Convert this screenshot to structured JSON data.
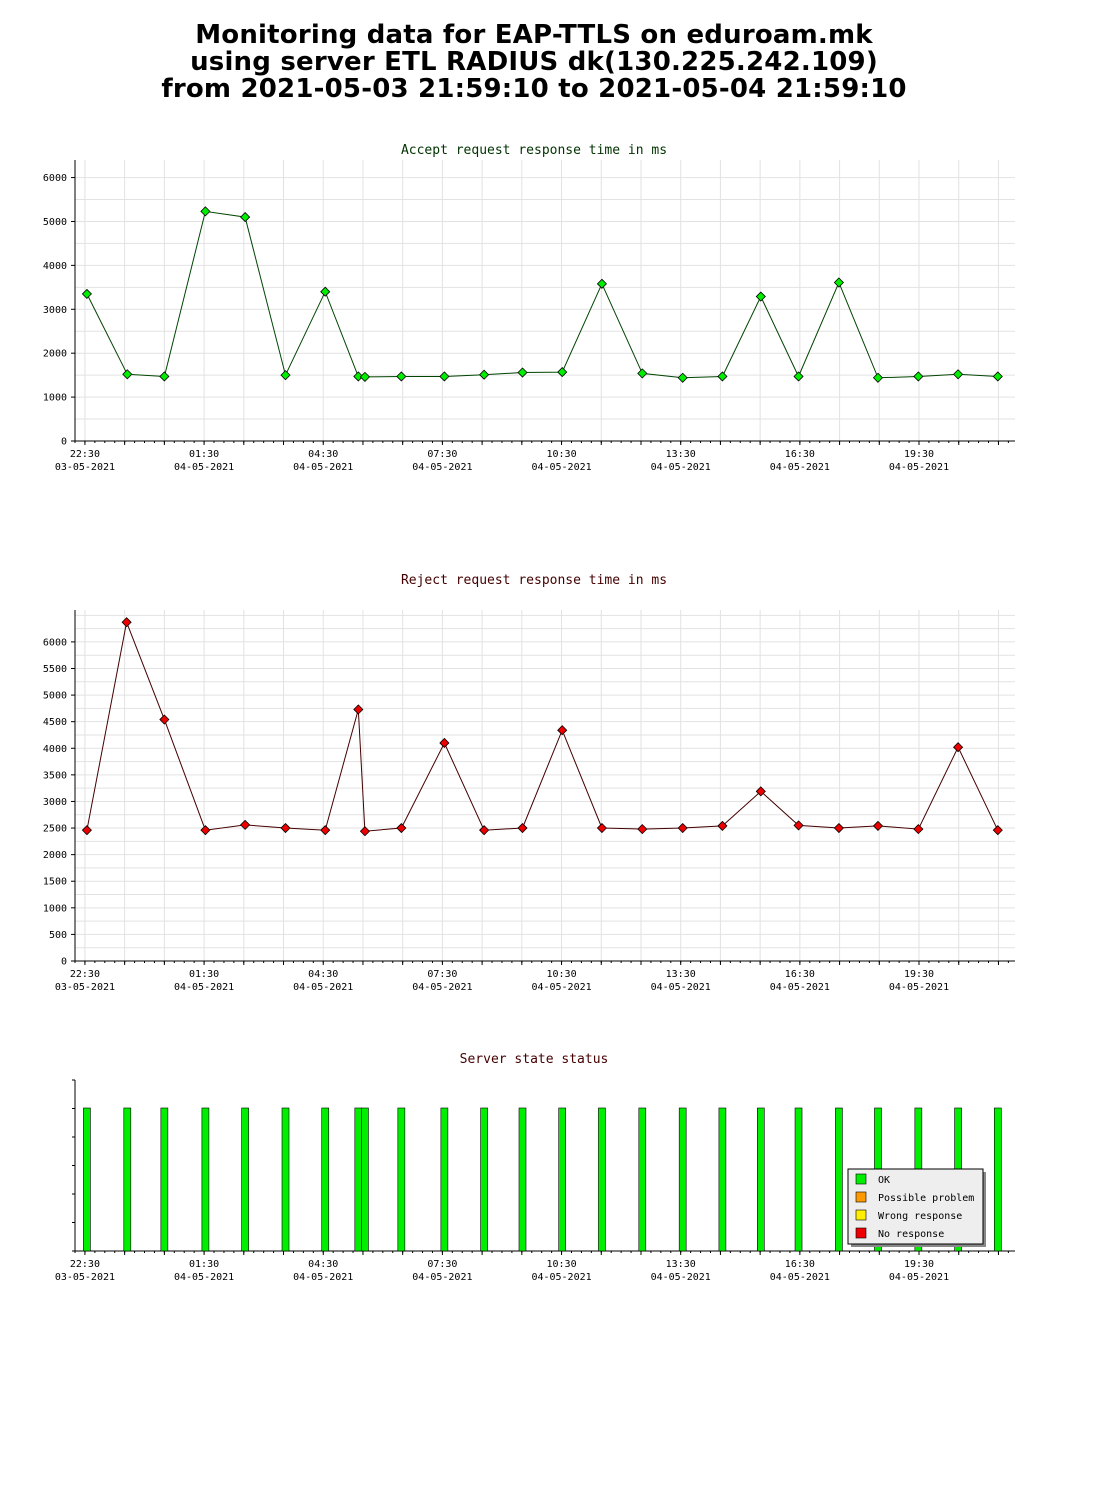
{
  "header": {
    "title_lines": [
      "Monitoring data for EAP-TTLS on eduroam.mk",
      "using server ETL RADIUS dk(130.225.242.109)",
      "from 2021-05-03 21:59:10 to 2021-05-04 21:59:10"
    ]
  },
  "chart_data": [
    {
      "type": "line",
      "title": "Accept request response time in ms",
      "xlabel": "",
      "ylabel": "",
      "x_tick_labels": [
        [
          "22:30",
          "03-05-2021"
        ],
        [
          "01:30",
          "04-05-2021"
        ],
        [
          "04:30",
          "04-05-2021"
        ],
        [
          "07:30",
          "04-05-2021"
        ],
        [
          "10:30",
          "04-05-2021"
        ],
        [
          "13:30",
          "04-05-2021"
        ],
        [
          "16:30",
          "04-05-2021"
        ],
        [
          "19:30",
          "04-05-2021"
        ]
      ],
      "xlim": [
        "2021-05-03 22:15",
        "2021-05-04 21:55"
      ],
      "ylim": [
        0,
        6400
      ],
      "y_ticks": [
        0,
        1000,
        2000,
        3000,
        4000,
        5000,
        6000
      ],
      "grid": true,
      "line_color": "#004400",
      "marker_color": "#00ee00",
      "x": [
        "2021-05-03 22:33",
        "2021-05-03 23:34",
        "2021-05-04 00:30",
        "2021-05-04 01:32",
        "2021-05-04 02:32",
        "2021-05-04 03:33",
        "2021-05-04 04:33",
        "2021-05-04 05:23",
        "2021-05-04 05:33",
        "2021-05-04 06:28",
        "2021-05-04 07:33",
        "2021-05-04 08:33",
        "2021-05-04 09:31",
        "2021-05-04 10:31",
        "2021-05-04 11:31",
        "2021-05-04 12:32",
        "2021-05-04 13:33",
        "2021-05-04 14:33",
        "2021-05-04 15:31",
        "2021-05-04 16:28",
        "2021-05-04 17:29",
        "2021-05-04 18:28",
        "2021-05-04 19:29",
        "2021-05-04 20:29",
        "2021-05-04 21:29"
      ],
      "y": [
        3350,
        1520,
        1470,
        5230,
        5100,
        1500,
        3400,
        1470,
        1460,
        1470,
        1470,
        1510,
        1560,
        1570,
        3580,
        1540,
        1440,
        1470,
        3290,
        1470,
        3610,
        1440,
        1470,
        1520,
        1470
      ]
    },
    {
      "type": "line",
      "title": "Reject request response time in ms",
      "xlabel": "",
      "ylabel": "",
      "x_tick_labels": [
        [
          "22:30",
          "03-05-2021"
        ],
        [
          "01:30",
          "04-05-2021"
        ],
        [
          "04:30",
          "04-05-2021"
        ],
        [
          "07:30",
          "04-05-2021"
        ],
        [
          "10:30",
          "04-05-2021"
        ],
        [
          "13:30",
          "04-05-2021"
        ],
        [
          "16:30",
          "04-05-2021"
        ],
        [
          "19:30",
          "04-05-2021"
        ]
      ],
      "xlim": [
        "2021-05-03 22:15",
        "2021-05-04 21:55"
      ],
      "ylim": [
        0,
        6600
      ],
      "y_ticks": [
        0,
        500,
        1000,
        1500,
        2000,
        2500,
        3000,
        3500,
        4000,
        4500,
        5000,
        5500,
        6000
      ],
      "grid": true,
      "line_color": "#440000",
      "marker_color": "#ee0000",
      "x": [
        "2021-05-03 22:33",
        "2021-05-03 23:33",
        "2021-05-04 00:30",
        "2021-05-04 01:32",
        "2021-05-04 02:32",
        "2021-05-04 03:33",
        "2021-05-04 04:33",
        "2021-05-04 05:23",
        "2021-05-04 05:33",
        "2021-05-04 06:28",
        "2021-05-04 07:33",
        "2021-05-04 08:33",
        "2021-05-04 09:31",
        "2021-05-04 10:31",
        "2021-05-04 11:31",
        "2021-05-04 12:32",
        "2021-05-04 13:33",
        "2021-05-04 14:33",
        "2021-05-04 15:31",
        "2021-05-04 16:28",
        "2021-05-04 17:29",
        "2021-05-04 18:28",
        "2021-05-04 19:29",
        "2021-05-04 20:29",
        "2021-05-04 21:29"
      ],
      "y": [
        2460,
        6370,
        4540,
        2460,
        2560,
        2500,
        2460,
        4730,
        2440,
        2500,
        4100,
        2460,
        2500,
        4340,
        2500,
        2480,
        2500,
        2540,
        3190,
        2550,
        2500,
        2540,
        2480,
        4020,
        2460
      ]
    },
    {
      "type": "bar",
      "title": "Server state status",
      "xlabel": "",
      "ylabel": "",
      "x_tick_labels": [
        [
          "22:30",
          "03-05-2021"
        ],
        [
          "01:30",
          "04-05-2021"
        ],
        [
          "04:30",
          "04-05-2021"
        ],
        [
          "07:30",
          "04-05-2021"
        ],
        [
          "10:30",
          "04-05-2021"
        ],
        [
          "13:30",
          "04-05-2021"
        ],
        [
          "16:30",
          "04-05-2021"
        ],
        [
          "19:30",
          "04-05-2021"
        ]
      ],
      "xlim": [
        "2021-05-03 22:15",
        "2021-05-04 21:55"
      ],
      "grid": false,
      "legend_position": "bottom-right",
      "legend": [
        {
          "label": "OK",
          "color": "#00ee00"
        },
        {
          "label": "Possible problem",
          "color": "#ff9900"
        },
        {
          "label": "Wrong response",
          "color": "#ffee00"
        },
        {
          "label": "No response",
          "color": "#ee0000"
        }
      ],
      "x": [
        "2021-05-03 22:33",
        "2021-05-03 23:34",
        "2021-05-04 00:30",
        "2021-05-04 01:32",
        "2021-05-04 02:32",
        "2021-05-04 03:33",
        "2021-05-04 04:33",
        "2021-05-04 05:23",
        "2021-05-04 05:33",
        "2021-05-04 06:28",
        "2021-05-04 07:33",
        "2021-05-04 08:33",
        "2021-05-04 09:31",
        "2021-05-04 10:31",
        "2021-05-04 11:31",
        "2021-05-04 12:32",
        "2021-05-04 13:33",
        "2021-05-04 14:33",
        "2021-05-04 15:31",
        "2021-05-04 16:28",
        "2021-05-04 17:29",
        "2021-05-04 18:28",
        "2021-05-04 19:29",
        "2021-05-04 20:29",
        "2021-05-04 21:29"
      ],
      "states": [
        "OK",
        "OK",
        "OK",
        "OK",
        "OK",
        "OK",
        "OK",
        "OK",
        "OK",
        "OK",
        "OK",
        "OK",
        "OK",
        "OK",
        "OK",
        "OK",
        "OK",
        "OK",
        "OK",
        "OK",
        "OK",
        "OK",
        "OK",
        "OK",
        "OK"
      ]
    }
  ]
}
